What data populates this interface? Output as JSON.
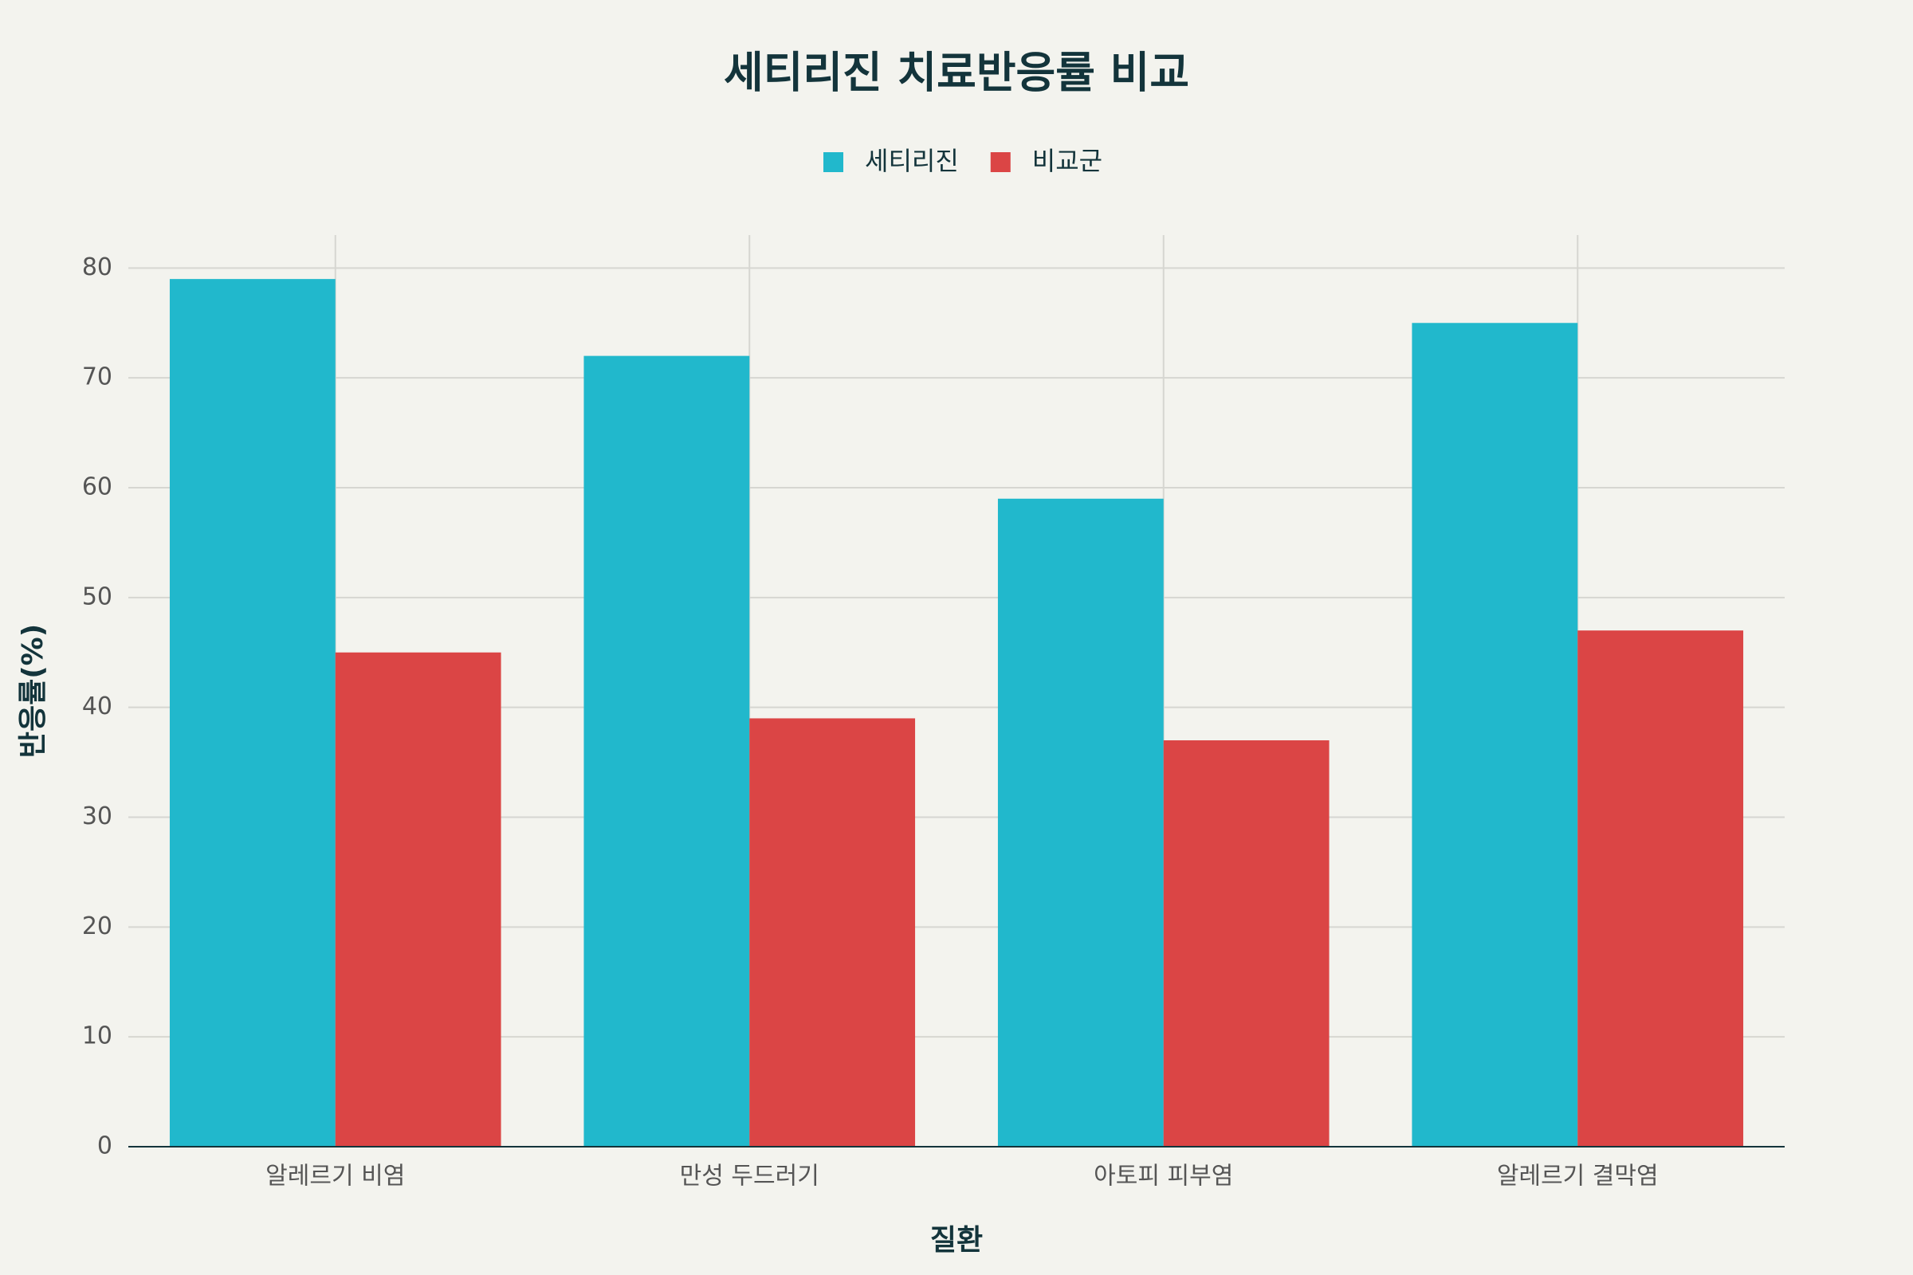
{
  "chart_data": {
    "type": "bar",
    "title": "세티리진 치료반응률 비교",
    "x_label": "질환",
    "y_label": "반응률(%)",
    "categories": [
      "알레르기 비염",
      "만성 두드러기",
      "아토피 피부염",
      "알레르기 결막염"
    ],
    "series": [
      {
        "name": "세티리진",
        "color": "#21b8cc",
        "values": [
          79,
          72,
          59,
          75
        ]
      },
      {
        "name": "비교군",
        "color": "#db4545",
        "values": [
          45,
          39,
          37,
          47
        ]
      }
    ],
    "ylim": [
      0,
      83
    ],
    "yticks": [
      0,
      10,
      20,
      30,
      40,
      50,
      60,
      70,
      80
    ],
    "grid": true,
    "legend": "top"
  }
}
